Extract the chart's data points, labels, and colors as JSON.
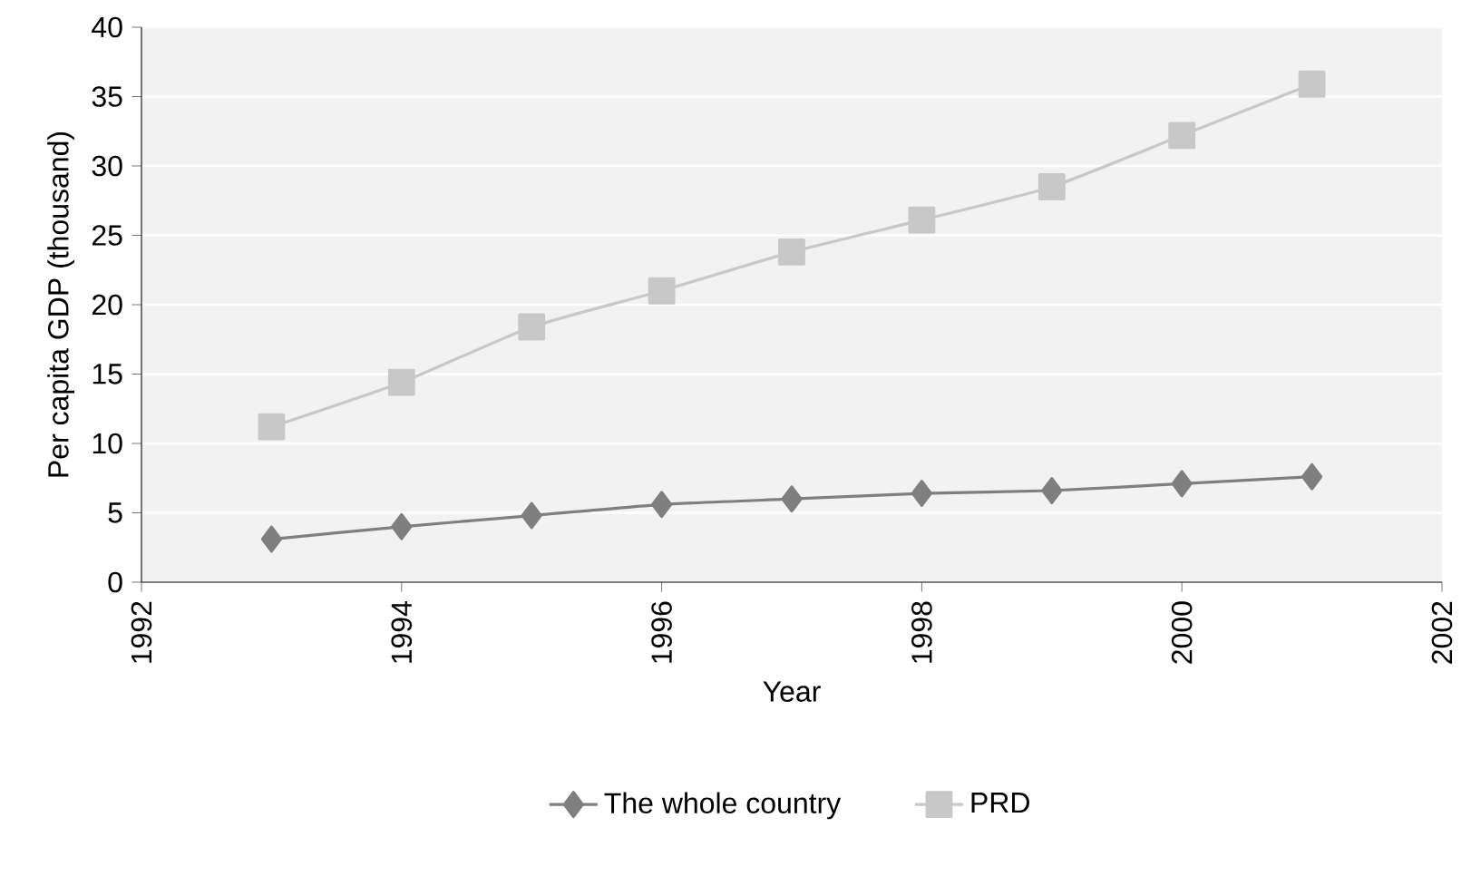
{
  "chart_data": {
    "type": "line",
    "xlabel": "Year",
    "ylabel": "Per capita GDP (thousand)",
    "x": [
      1993,
      1994,
      1995,
      1996,
      1997,
      1998,
      1999,
      2000,
      2001
    ],
    "series": [
      {
        "name": "The whole country",
        "color": "#7f7f7f",
        "marker": "diamond",
        "values": [
          3.1,
          4.0,
          4.8,
          5.6,
          6.0,
          6.4,
          6.6,
          7.1,
          7.6
        ]
      },
      {
        "name": "PRD",
        "color": "#c8c8c8",
        "marker": "square",
        "values": [
          11.2,
          14.4,
          18.4,
          21.0,
          23.8,
          26.1,
          28.5,
          32.2,
          35.9
        ]
      }
    ],
    "xlim": [
      1992,
      2002
    ],
    "xticks": [
      1992,
      1994,
      1996,
      1998,
      2000,
      2002
    ],
    "ylim": [
      0,
      40
    ],
    "yticks": [
      0,
      5,
      10,
      15,
      20,
      25,
      30,
      35,
      40
    ],
    "grid": "y",
    "legend": "bottom",
    "line_style": "solid"
  }
}
